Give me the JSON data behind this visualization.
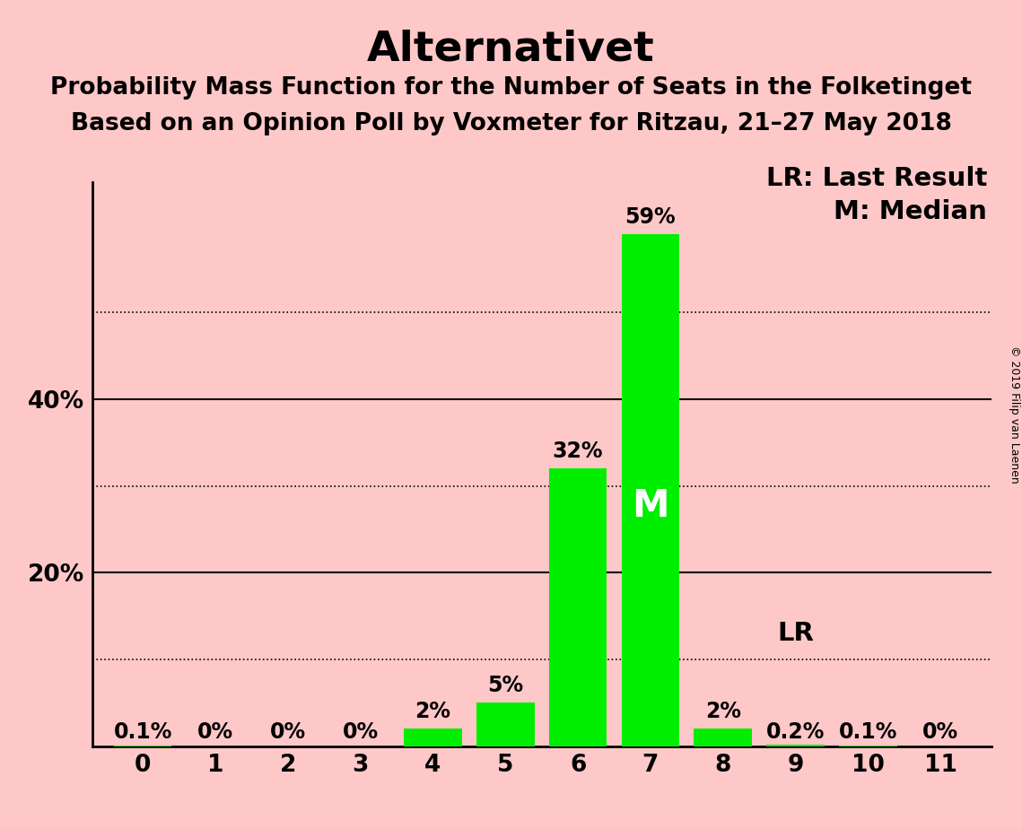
{
  "title": "Alternativet",
  "subtitle1": "Probability Mass Function for the Number of Seats in the Folketinget",
  "subtitle2": "Based on an Opinion Poll by Voxmeter for Ritzau, 21–27 May 2018",
  "copyright": "© 2019 Filip van Laenen",
  "categories": [
    0,
    1,
    2,
    3,
    4,
    5,
    6,
    7,
    8,
    9,
    10,
    11
  ],
  "values": [
    0.1,
    0.0,
    0.0,
    0.0,
    2.0,
    5.0,
    32.0,
    59.0,
    2.0,
    0.2,
    0.1,
    0.0
  ],
  "labels": [
    "0.1%",
    "0%",
    "0%",
    "0%",
    "2%",
    "5%",
    "32%",
    "59%",
    "2%",
    "0.2%",
    "0.1%",
    "0%"
  ],
  "bar_color": "#00ee00",
  "background_color": "#ffc8c8",
  "ylim_max": 65,
  "median_bar": 7,
  "lr_bar": 9,
  "legend_lr": "LR: Last Result",
  "legend_m": "M: Median",
  "title_fontsize": 34,
  "subtitle_fontsize": 19,
  "label_fontsize": 17,
  "tick_fontsize": 19,
  "legend_fontsize": 21,
  "copyright_fontsize": 9
}
